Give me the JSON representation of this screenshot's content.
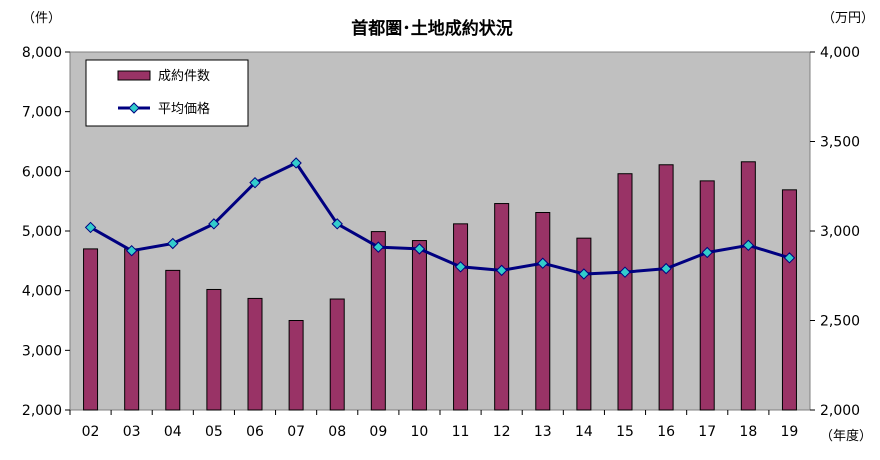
{
  "chart_data": {
    "type": "bar",
    "title": "首都圏･土地成約状況",
    "y_left_unit": "（件）",
    "y_right_unit": "（万円）",
    "x_unit": "（年度）",
    "categories": [
      "02",
      "03",
      "04",
      "05",
      "06",
      "07",
      "08",
      "09",
      "10",
      "11",
      "12",
      "13",
      "14",
      "15",
      "16",
      "17",
      "18",
      "19"
    ],
    "y_left_range": [
      2000,
      8000
    ],
    "y_left_ticks": [
      "2,000",
      "3,000",
      "4,000",
      "5,000",
      "6,000",
      "7,000",
      "8,000"
    ],
    "y_right_range": [
      2000,
      4000
    ],
    "y_right_ticks": [
      "2,000",
      "2,500",
      "3,000",
      "3,500",
      "4,000"
    ],
    "series": [
      {
        "name": "成約件数",
        "type": "bar",
        "axis": "left",
        "color": "#993366",
        "values": [
          4700,
          4700,
          4340,
          4020,
          3870,
          3500,
          3860,
          4990,
          4840,
          5120,
          5460,
          5310,
          4880,
          5960,
          6110,
          5840,
          6160,
          5690
        ]
      },
      {
        "name": "平均価格",
        "type": "line",
        "axis": "right",
        "color": "#000080",
        "marker_color": "#33CCCC",
        "values": [
          3020,
          2890,
          2930,
          3040,
          3270,
          3380,
          3040,
          2910,
          2900,
          2800,
          2780,
          2820,
          2760,
          2770,
          2790,
          2880,
          2920,
          2850
        ]
      }
    ],
    "grid": false,
    "legend_position": "top-left",
    "plot_background": "#C0C0C0"
  }
}
